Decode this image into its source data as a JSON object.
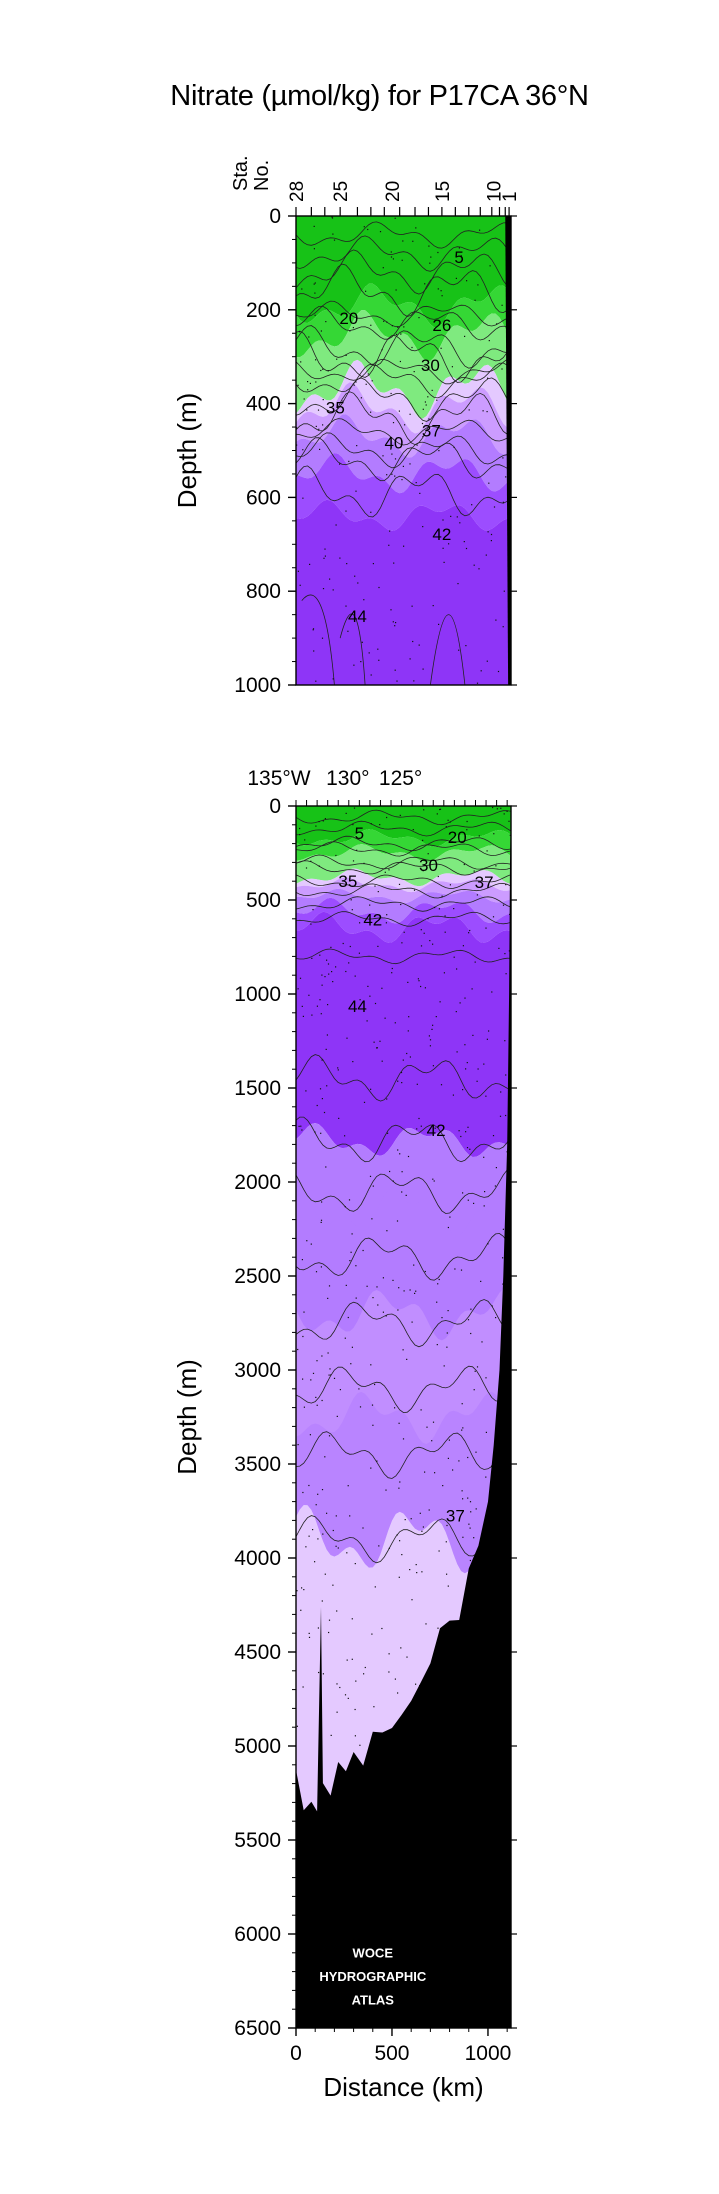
{
  "title": "Nitrate (µmol/kg) for P17CA 36°N",
  "station_header": {
    "sta": "Sta.",
    "no": "No."
  },
  "station_numbers": [
    "28",
    "25",
    "20",
    "15",
    "10",
    "1"
  ],
  "longitude_labels": [
    "135°W",
    "130°",
    "125°"
  ],
  "ylabel_upper": "Depth (m)",
  "ylabel_lower": "Depth (m)",
  "xlabel": "Distance (km)",
  "watermark": [
    "WOCE",
    "HYDROGRAPHIC",
    "ATLAS"
  ],
  "colors": {
    "green_dark": "#17c217",
    "green_mid": "#35d735",
    "green_light": "#7fea7f",
    "green_pale": "#b4f4b4",
    "lav_pale": "#e4c9ff",
    "lav_light": "#cc9cff",
    "purple_mid": "#b37cff",
    "purple_deep": "#9c4dff",
    "purple_strong": "#8e35f7",
    "bottom": "#000000"
  },
  "chart_data": [
    {
      "type": "contour",
      "panel": "upper",
      "xlabel": "",
      "ylabel": "Depth (m)",
      "ylim": [
        1000,
        0
      ],
      "xlim": [
        0,
        1120
      ],
      "yticks": [
        0,
        200,
        400,
        600,
        800,
        1000
      ],
      "contour_labels": [
        {
          "label": "5",
          "x": 850,
          "y": 90
        },
        {
          "label": "20",
          "x": 275,
          "y": 220
        },
        {
          "label": "26",
          "x": 760,
          "y": 235
        },
        {
          "label": "30",
          "x": 700,
          "y": 320
        },
        {
          "label": "35",
          "x": 205,
          "y": 410
        },
        {
          "label": "37",
          "x": 705,
          "y": 460
        },
        {
          "label": "40",
          "x": 510,
          "y": 485
        },
        {
          "label": "42",
          "x": 760,
          "y": 680
        },
        {
          "label": "44",
          "x": 320,
          "y": 855
        }
      ]
    },
    {
      "type": "contour",
      "panel": "lower",
      "xlabel": "Distance (km)",
      "ylabel": "Depth (m)",
      "ylim": [
        6500,
        0
      ],
      "xlim": [
        0,
        1120
      ],
      "yticks": [
        0,
        500,
        1000,
        1500,
        2000,
        2500,
        3000,
        3500,
        4000,
        4500,
        5000,
        5500,
        6000,
        6500
      ],
      "xticks": [
        0,
        500,
        1000
      ],
      "contour_labels": [
        {
          "label": "5",
          "x": 330,
          "y": 150
        },
        {
          "label": "20",
          "x": 840,
          "y": 170
        },
        {
          "label": "30",
          "x": 690,
          "y": 320
        },
        {
          "label": "35",
          "x": 270,
          "y": 405
        },
        {
          "label": "37",
          "x": 980,
          "y": 410
        },
        {
          "label": "42",
          "x": 400,
          "y": 610
        },
        {
          "label": "44",
          "x": 320,
          "y": 1070
        },
        {
          "label": "42",
          "x": 730,
          "y": 1730
        },
        {
          "label": "37",
          "x": 830,
          "y": 3780
        }
      ]
    }
  ]
}
